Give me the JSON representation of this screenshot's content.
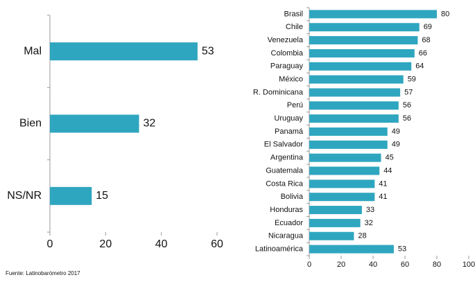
{
  "chart_data": [
    {
      "type": "barh",
      "categories": [
        "Mal",
        "Bien",
        "NS/NR"
      ],
      "values": [
        53,
        32,
        15
      ],
      "color": "#2fa6bf",
      "xlim": [
        0,
        60
      ],
      "xticks": [
        0,
        20,
        40,
        60
      ]
    },
    {
      "type": "barh",
      "categories": [
        "Brasil",
        "Chile",
        "Venezuela",
        "Colombia",
        "Paraguay",
        "México",
        "R. Dominicana",
        "Perú",
        "Uruguay",
        "Panamá",
        "El Salvador",
        "Argentina",
        "Guatemala",
        "Costa Rica",
        "Bolivia",
        "Honduras",
        "Ecuador",
        "Nicaragua",
        "Latinoamérica"
      ],
      "values": [
        80,
        69,
        68,
        66,
        64,
        59,
        57,
        56,
        56,
        49,
        49,
        45,
        44,
        41,
        41,
        33,
        32,
        28,
        53
      ],
      "color": "#2fa6bf",
      "xlim": [
        0,
        100
      ],
      "xticks": [
        0,
        20,
        40,
        60,
        80,
        100
      ]
    }
  ],
  "source": "Fuente: Latinobarómetro 2017"
}
